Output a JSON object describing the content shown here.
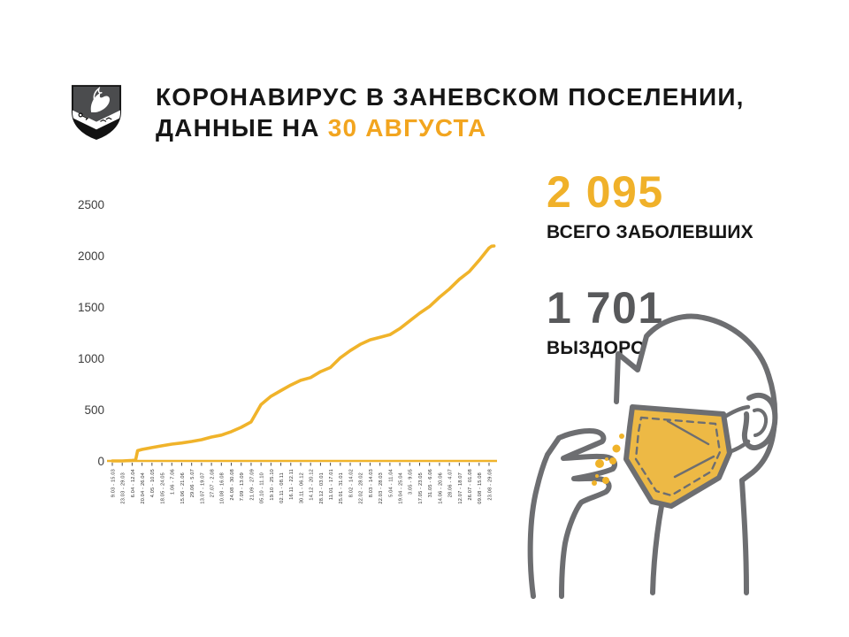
{
  "header": {
    "title_line1": "КОРОНАВИРУС В ЗАНЕВСКОМ ПОСЕЛЕНИИ,",
    "title_line2_prefix": "ДАННЫЕ НА ",
    "title_line2_accent": "30 АВГУСТА",
    "logo_icon": "zanevskoe-settlement-coat-of-arms"
  },
  "stats": [
    {
      "value": "2 095",
      "label": "ВСЕГО ЗАБОЛЕВШИХ",
      "color": "#F0B12A"
    },
    {
      "value": "1 701",
      "label": "ВЫЗДОРОВЕЛИ",
      "color": "#58595B"
    }
  ],
  "illustration": {
    "icon": "person-in-medical-mask-with-hand-and-droplets",
    "outline_color": "#6D6E71",
    "mask_color": "#EDB945",
    "droplet_color": "#F0B32A"
  },
  "colors": {
    "accent_orange": "#F2A51F",
    "chart_line": "#F0B32A",
    "axis_tick": "#4d4d4d",
    "text_dark": "#161616",
    "recovered_gray": "#58595B"
  },
  "chart_data": {
    "type": "line",
    "title": "",
    "xlabel": "",
    "ylabel": "",
    "ylim": [
      0,
      2500
    ],
    "yticks": [
      0,
      500,
      1000,
      1500,
      2000,
      2500
    ],
    "grid": false,
    "legend": "none",
    "line_color": "#F0B32A",
    "categories": [
      "9.03 - 15.03",
      "23.03 - 29.03",
      "6.04 - 12.04",
      "20.04 - 26.04",
      "4.05 - 10.05",
      "18.05 - 24.05",
      "1.06 - 7.06",
      "15.06 - 21.06",
      "29.06 - 5.07",
      "13.07 - 19.07",
      "27.07 - 2.08",
      "10.08 - 16.08",
      "24.08 - 30.08",
      "7.09 - 13.09",
      "21.09 - 27.09",
      "05.10 - 11.10",
      "19.10 - 25.10",
      "02.11 - 08.11",
      "16.11 - 22.11",
      "30.11 - 06.12",
      "14.12 - 20.12",
      "28.12 - 03.01",
      "11.01 - 17.01",
      "25.01 - 31.01",
      "8.02 - 14.02",
      "22.02 - 28.02",
      "8.03 - 14.03",
      "22.03 - 28.03",
      "5.04 - 11.04",
      "19.04 - 25.04",
      "3.05 - 9.05",
      "17.05 - 23.05",
      "31.05 - 6.06",
      "14.06 - 20.06",
      "28.06 - 4.07",
      "12.07 - 18.07",
      "26.07 - 01.08",
      "09.08 - 15.08",
      "23.08 - 29.08"
    ],
    "values": [
      0,
      0,
      5,
      112,
      130,
      147,
      164,
      175,
      190,
      207,
      233,
      252,
      285,
      328,
      380,
      550,
      630,
      685,
      740,
      785,
      812,
      870,
      910,
      1005,
      1075,
      1135,
      1180,
      1205,
      1230,
      1290,
      1365,
      1440,
      1505,
      1595,
      1675,
      1770,
      1845,
      1955,
      2075
    ],
    "draw_points": [
      [
        0,
        0
      ],
      [
        1,
        0
      ],
      [
        2,
        5
      ],
      [
        2.35,
        8
      ],
      [
        2.55,
        100
      ],
      [
        3,
        112
      ],
      [
        4,
        130
      ],
      [
        5,
        147
      ],
      [
        6,
        164
      ],
      [
        7,
        175
      ],
      [
        8,
        190
      ],
      [
        9,
        207
      ],
      [
        10,
        233
      ],
      [
        11,
        252
      ],
      [
        12,
        285
      ],
      [
        13,
        328
      ],
      [
        14,
        380
      ],
      [
        15,
        550
      ],
      [
        16,
        630
      ],
      [
        17,
        685
      ],
      [
        18,
        740
      ],
      [
        19,
        785
      ],
      [
        20,
        812
      ],
      [
        21,
        870
      ],
      [
        22,
        910
      ],
      [
        23,
        1005
      ],
      [
        24,
        1075
      ],
      [
        25,
        1135
      ],
      [
        26,
        1180
      ],
      [
        27,
        1205
      ],
      [
        28,
        1230
      ],
      [
        29,
        1290
      ],
      [
        30,
        1365
      ],
      [
        31,
        1440
      ],
      [
        32,
        1505
      ],
      [
        33,
        1595
      ],
      [
        34,
        1675
      ],
      [
        35,
        1770
      ],
      [
        36,
        1845
      ],
      [
        37,
        1955
      ],
      [
        38,
        2075
      ],
      [
        38.25,
        2092
      ],
      [
        38.5,
        2095
      ]
    ],
    "final": {
      "date_label": "30.08",
      "value": 2095
    }
  }
}
